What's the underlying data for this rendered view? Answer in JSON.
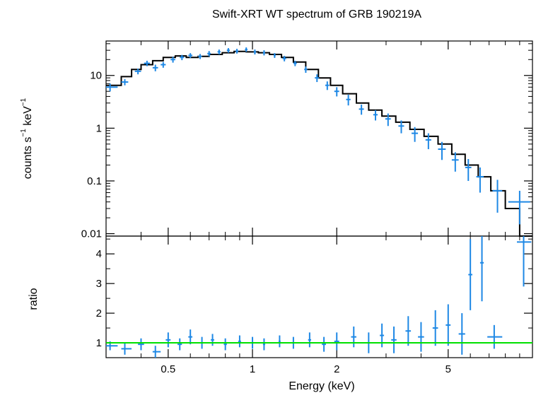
{
  "title": "Swift-XRT WT spectrum of GRB 190219A",
  "chart_data": [
    {
      "panel": "spectrum",
      "type": "scatter",
      "title": "Swift-XRT WT spectrum of GRB 190219A",
      "xlabel": "Energy (keV)",
      "ylabel_parts": {
        "main": "counts s",
        "exp1": "−1",
        "mid": " keV",
        "exp2": "−1"
      },
      "xscale": "log",
      "yscale": "log",
      "xlim": [
        0.3,
        10
      ],
      "ylim": [
        0.009,
        45
      ],
      "yticks": [
        0.01,
        0.1,
        1,
        10
      ],
      "ytick_labels": [
        "0.01",
        "0.1",
        "1",
        "10"
      ],
      "data_color": "#1e88e5",
      "model_color": "#000000",
      "series": [
        {
          "name": "data",
          "points": [
            [
              0.31,
              6.0,
              0.33,
              0.3,
              1.0
            ],
            [
              0.35,
              7.5,
              0.36,
              0.34,
              1.0
            ],
            [
              0.39,
              12.0,
              0.4,
              0.38,
              1.5
            ],
            [
              0.42,
              17.0,
              0.43,
              0.41,
              2.0
            ],
            [
              0.45,
              14.0,
              0.46,
              0.44,
              2.0
            ],
            [
              0.48,
              16.0,
              0.49,
              0.47,
              2.0
            ],
            [
              0.52,
              20.0,
              0.53,
              0.51,
              2.5
            ],
            [
              0.56,
              22.0,
              0.57,
              0.55,
              2.5
            ],
            [
              0.6,
              24.0,
              0.61,
              0.59,
              2.5
            ],
            [
              0.65,
              23.0,
              0.66,
              0.64,
              2.5
            ],
            [
              0.7,
              26.0,
              0.71,
              0.69,
              3.0
            ],
            [
              0.76,
              28.0,
              0.77,
              0.75,
              3.0
            ],
            [
              0.82,
              30.0,
              0.83,
              0.81,
              3.0
            ],
            [
              0.88,
              29.0,
              0.89,
              0.87,
              3.0
            ],
            [
              0.95,
              31.0,
              0.96,
              0.94,
              3.0
            ],
            [
              1.02,
              28.0,
              1.03,
              1.01,
              3.0
            ],
            [
              1.1,
              27.0,
              1.11,
              1.09,
              3.0
            ],
            [
              1.2,
              24.0,
              1.21,
              1.19,
              2.5
            ],
            [
              1.3,
              21.0,
              1.32,
              1.28,
              2.5
            ],
            [
              1.42,
              17.0,
              1.44,
              1.4,
              2.0
            ],
            [
              1.55,
              13.0,
              1.57,
              1.53,
              1.8
            ],
            [
              1.7,
              9.0,
              1.73,
              1.67,
              1.5
            ],
            [
              1.85,
              6.5,
              1.88,
              1.82,
              1.2
            ],
            [
              2.0,
              5.0,
              2.04,
              1.96,
              1.0
            ],
            [
              2.2,
              3.5,
              2.24,
              2.16,
              0.8
            ],
            [
              2.45,
              2.3,
              2.5,
              2.4,
              0.5
            ],
            [
              2.75,
              1.8,
              2.8,
              2.7,
              0.4
            ],
            [
              3.05,
              1.5,
              3.12,
              2.98,
              0.4
            ],
            [
              3.4,
              1.1,
              3.48,
              3.32,
              0.3
            ],
            [
              3.8,
              0.8,
              3.9,
              3.7,
              0.25
            ],
            [
              4.25,
              0.6,
              4.35,
              4.15,
              0.2
            ],
            [
              4.75,
              0.4,
              4.9,
              4.6,
              0.15
            ],
            [
              5.3,
              0.25,
              5.45,
              5.15,
              0.1
            ],
            [
              5.9,
              0.18,
              6.05,
              5.75,
              0.08
            ],
            [
              6.5,
              0.12,
              6.7,
              6.3,
              0.06
            ],
            [
              7.5,
              0.065,
              7.8,
              7.2,
              0.04
            ],
            [
              9.0,
              0.04,
              9.8,
              8.2,
              0.025
            ]
          ]
        },
        {
          "name": "model",
          "step": [
            [
              0.3,
              6.5
            ],
            [
              0.32,
              6.5
            ],
            [
              0.34,
              9.5
            ],
            [
              0.37,
              13.0
            ],
            [
              0.4,
              16.0
            ],
            [
              0.44,
              19.0
            ],
            [
              0.48,
              22.0
            ],
            [
              0.53,
              23.5
            ],
            [
              0.58,
              22.0
            ],
            [
              0.64,
              23.0
            ],
            [
              0.7,
              25.0
            ],
            [
              0.78,
              27.0
            ],
            [
              0.86,
              28.5
            ],
            [
              0.95,
              28.0
            ],
            [
              1.05,
              27.0
            ],
            [
              1.15,
              25.0
            ],
            [
              1.27,
              22.0
            ],
            [
              1.4,
              18.0
            ],
            [
              1.55,
              13.0
            ],
            [
              1.72,
              9.0
            ],
            [
              1.9,
              6.5
            ],
            [
              2.1,
              4.5
            ],
            [
              2.35,
              3.0
            ],
            [
              2.6,
              2.2
            ],
            [
              2.9,
              1.7
            ],
            [
              3.25,
              1.3
            ],
            [
              3.65,
              0.95
            ],
            [
              4.1,
              0.7
            ],
            [
              4.6,
              0.5
            ],
            [
              5.15,
              0.32
            ],
            [
              5.75,
              0.2
            ],
            [
              6.4,
              0.12
            ],
            [
              7.1,
              0.065
            ],
            [
              8.0,
              0.03
            ],
            [
              9.0,
              0.008
            ],
            [
              10.0,
              0.008
            ]
          ]
        }
      ]
    },
    {
      "panel": "ratio",
      "type": "scatter",
      "xlabel": "Energy (keV)",
      "ylabel": "ratio",
      "xscale": "log",
      "xlim": [
        0.3,
        10
      ],
      "ylim": [
        0.5,
        4.6
      ],
      "yticks": [
        1,
        2,
        3,
        4
      ],
      "ytick_labels": [
        "1",
        "2",
        "3",
        "4"
      ],
      "xticks": [
        0.5,
        1,
        2,
        5
      ],
      "xtick_labels": [
        "0.5",
        "1",
        "2",
        "5"
      ],
      "reference_line": 1.0,
      "reference_color": "#00e000",
      "data_color": "#1e88e5",
      "series": [
        {
          "name": "data",
          "points": [
            [
              0.31,
              0.9,
              0.33,
              0.3,
              0.15
            ],
            [
              0.35,
              0.8,
              0.37,
              0.34,
              0.2
            ],
            [
              0.4,
              0.95,
              0.41,
              0.39,
              0.2
            ],
            [
              0.45,
              0.7,
              0.47,
              0.44,
              0.2
            ],
            [
              0.5,
              1.1,
              0.51,
              0.49,
              0.25
            ],
            [
              0.55,
              0.95,
              0.56,
              0.54,
              0.2
            ],
            [
              0.6,
              1.2,
              0.61,
              0.59,
              0.25
            ],
            [
              0.66,
              1.0,
              0.67,
              0.65,
              0.2
            ],
            [
              0.72,
              1.1,
              0.73,
              0.71,
              0.2
            ],
            [
              0.8,
              0.95,
              0.81,
              0.79,
              0.2
            ],
            [
              0.9,
              1.05,
              0.91,
              0.89,
              0.2
            ],
            [
              1.0,
              1.0,
              1.01,
              0.99,
              0.2
            ],
            [
              1.1,
              0.95,
              1.11,
              1.09,
              0.2
            ],
            [
              1.25,
              1.05,
              1.26,
              1.24,
              0.2
            ],
            [
              1.4,
              1.0,
              1.42,
              1.38,
              0.2
            ],
            [
              1.6,
              1.1,
              1.62,
              1.58,
              0.25
            ],
            [
              1.8,
              0.95,
              1.83,
              1.77,
              0.25
            ],
            [
              2.0,
              1.05,
              2.04,
              1.96,
              0.3
            ],
            [
              2.3,
              1.2,
              2.35,
              2.25,
              0.35
            ],
            [
              2.6,
              1.0,
              2.65,
              2.55,
              0.35
            ],
            [
              2.9,
              1.25,
              2.95,
              2.85,
              0.4
            ],
            [
              3.2,
              1.1,
              3.27,
              3.13,
              0.45
            ],
            [
              3.6,
              1.4,
              3.68,
              3.52,
              0.5
            ],
            [
              4.0,
              1.2,
              4.1,
              3.9,
              0.5
            ],
            [
              4.5,
              1.5,
              4.6,
              4.4,
              0.6
            ],
            [
              5.0,
              1.6,
              5.1,
              4.9,
              0.7
            ],
            [
              5.6,
              1.3,
              5.75,
              5.45,
              0.7
            ],
            [
              6.0,
              3.3,
              6.1,
              5.9,
              1.2
            ],
            [
              6.6,
              3.7,
              6.7,
              6.5,
              1.3
            ],
            [
              7.3,
              1.2,
              7.8,
              6.9,
              0.4
            ],
            [
              9.3,
              4.4,
              9.9,
              8.8,
              1.5
            ]
          ]
        }
      ]
    }
  ]
}
